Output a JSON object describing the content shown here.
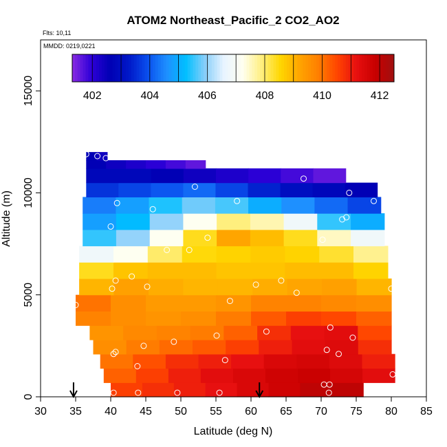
{
  "chart_data": {
    "type": "heatmap",
    "title": "ATOM2 Northeast_Pacific_2 CO2_AO2",
    "flights_text": "Flts: 10,11",
    "dates_text": "MMDD: 0219,0221",
    "xlabel": "Latitude (deg N)",
    "ylabel": "Altitude (m)",
    "xlim": [
      30,
      85
    ],
    "ylim": [
      0,
      17500
    ],
    "x_ticks": [
      30,
      35,
      40,
      45,
      50,
      55,
      60,
      65,
      70,
      75,
      80,
      85
    ],
    "y_ticks": [
      0,
      5000,
      10000,
      15000
    ],
    "colorbar": {
      "range": [
        401.3,
        412.5
      ],
      "tick_values": [
        402,
        404,
        406,
        408,
        410,
        412
      ],
      "colors": [
        "#8a2be2",
        "#2e00d8",
        "#0000b4",
        "#0018c8",
        "#0a50ee",
        "#1e90ff",
        "#00bfff",
        "#87cefa",
        "#e8f4ff",
        "#fffff0",
        "#ffef80",
        "#ffd700",
        "#ffa500",
        "#ff7f00",
        "#ff4500",
        "#e81010",
        "#c80000",
        "#a01010"
      ]
    },
    "field": {
      "lat_bands": [
        {
          "alt": [
            0,
            700
          ],
          "lat": [
            40,
            76
          ],
          "values": [
            410.6,
            410.8,
            411.0,
            411.2,
            411.5,
            411.7,
            412.0,
            412.0
          ]
        },
        {
          "alt": [
            700,
            1400
          ],
          "lat": [
            39,
            80.5
          ],
          "values": [
            410.2,
            410.6,
            411.0,
            411.3,
            411.5,
            411.7,
            411.8,
            411.6,
            411.3
          ]
        },
        {
          "alt": [
            1400,
            2100
          ],
          "lat": [
            38.5,
            80.5
          ],
          "values": [
            410.0,
            410.4,
            410.8,
            411.0,
            411.2,
            411.5,
            411.6,
            411.4,
            411.0
          ]
        },
        {
          "alt": [
            2100,
            2800
          ],
          "lat": [
            37.5,
            80
          ],
          "values": [
            409.6,
            409.9,
            410.1,
            410.3,
            410.6,
            411.0,
            411.3,
            411.4,
            410.8
          ]
        },
        {
          "alt": [
            2800,
            3500
          ],
          "lat": [
            37,
            80
          ],
          "values": [
            409.5,
            409.7,
            409.8,
            409.9,
            410.2,
            410.8,
            411.2,
            411.3,
            410.5
          ]
        },
        {
          "alt": [
            3500,
            4200
          ],
          "lat": [
            35,
            80
          ],
          "values": [
            409.8,
            409.6,
            409.5,
            409.6,
            409.9,
            410.3,
            410.6,
            410.5,
            410.2
          ]
        },
        {
          "alt": [
            4200,
            5000
          ],
          "lat": [
            35,
            80
          ],
          "values": [
            410.0,
            409.6,
            409.4,
            409.4,
            409.5,
            409.8,
            409.8,
            409.7,
            409.6
          ]
        },
        {
          "alt": [
            5000,
            5800
          ],
          "lat": [
            35.5,
            80
          ],
          "values": [
            409.0,
            409.3,
            409.1,
            409.0,
            409.0,
            409.1,
            409.2,
            409.3,
            409.0
          ]
        },
        {
          "alt": [
            5800,
            6600
          ],
          "lat": [
            35.5,
            79.5
          ],
          "values": [
            408.4,
            408.8,
            408.9,
            408.9,
            408.8,
            408.8,
            408.9,
            408.9,
            408.6
          ]
        },
        {
          "alt": [
            6600,
            7400
          ],
          "lat": [
            35.5,
            79.5
          ],
          "values": [
            406.8,
            407.2,
            408.0,
            408.5,
            408.6,
            408.7,
            408.6,
            408.3,
            407.8
          ]
        },
        {
          "alt": [
            7400,
            8200
          ],
          "lat": [
            36,
            79
          ],
          "values": [
            405.5,
            406.0,
            407.2,
            408.4,
            409.2,
            408.9,
            408.4,
            407.5,
            406.8
          ]
        },
        {
          "alt": [
            8200,
            9000
          ],
          "lat": [
            36,
            79
          ],
          "values": [
            404.8,
            405.2,
            406.0,
            407.2,
            407.9,
            407.6,
            406.8,
            405.5,
            405.0
          ]
        },
        {
          "alt": [
            9000,
            9800
          ],
          "lat": [
            36,
            78.5
          ],
          "values": [
            404.4,
            404.8,
            405.4,
            405.8,
            405.6,
            405.0,
            404.6,
            404.2,
            403.8
          ]
        },
        {
          "alt": [
            9800,
            10500
          ],
          "lat": [
            36.5,
            78
          ],
          "values": [
            403.6,
            403.8,
            404.0,
            404.2,
            403.8,
            403.4,
            403.0,
            402.8,
            402.6
          ]
        },
        {
          "alt": [
            10500,
            11200
          ],
          "lat": [
            36.5,
            73.5
          ],
          "values": [
            402.8,
            402.8,
            402.6,
            402.4,
            402.2,
            402.0,
            401.8,
            401.6
          ]
        },
        {
          "alt": [
            11200,
            11600
          ],
          "lat": [
            36.5,
            53.5
          ],
          "values": [
            402.6,
            402.4,
            402.2,
            402.0,
            401.8,
            401.6
          ]
        },
        {
          "alt": [
            11600,
            12000
          ],
          "lat": [
            36.5,
            39.5
          ],
          "values": [
            402.6,
            402.4
          ]
        }
      ]
    },
    "samples": [
      [
        36.5,
        11900
      ],
      [
        38.1,
        11800
      ],
      [
        39.3,
        11700
      ],
      [
        40.0,
        8350
      ],
      [
        40.9,
        9500
      ],
      [
        46.0,
        9200
      ],
      [
        52.0,
        10300
      ],
      [
        58.0,
        9600
      ],
      [
        67.5,
        10700
      ],
      [
        74.0,
        10000
      ],
      [
        77.5,
        9600
      ],
      [
        73.0,
        8700
      ],
      [
        73.6,
        8800
      ],
      [
        48.0,
        7200
      ],
      [
        51.2,
        7200
      ],
      [
        53.8,
        7800
      ],
      [
        70.2,
        7700
      ],
      [
        43.0,
        5900
      ],
      [
        40.7,
        5700
      ],
      [
        40.2,
        5300
      ],
      [
        45.2,
        5400
      ],
      [
        57.0,
        4700
      ],
      [
        60.7,
        5500
      ],
      [
        64.3,
        5700
      ],
      [
        66.5,
        5100
      ],
      [
        80.0,
        5300
      ],
      [
        35.0,
        4500
      ],
      [
        62.2,
        3200
      ],
      [
        71.3,
        3400
      ],
      [
        74.5,
        2900
      ],
      [
        55.1,
        3000
      ],
      [
        49.0,
        2700
      ],
      [
        44.7,
        2500
      ],
      [
        40.4,
        2100
      ],
      [
        40.7,
        2200
      ],
      [
        70.8,
        2300
      ],
      [
        72.5,
        2100
      ],
      [
        56.3,
        1800
      ],
      [
        43.8,
        1500
      ],
      [
        70.4,
        600
      ],
      [
        71.2,
        600
      ],
      [
        71.1,
        200
      ],
      [
        80.2,
        1100
      ],
      [
        40.4,
        200
      ],
      [
        43.9,
        200
      ],
      [
        49.5,
        200
      ],
      [
        55.5,
        200
      ]
    ],
    "arrows_lat": [
      34.7,
      61.2
    ]
  }
}
